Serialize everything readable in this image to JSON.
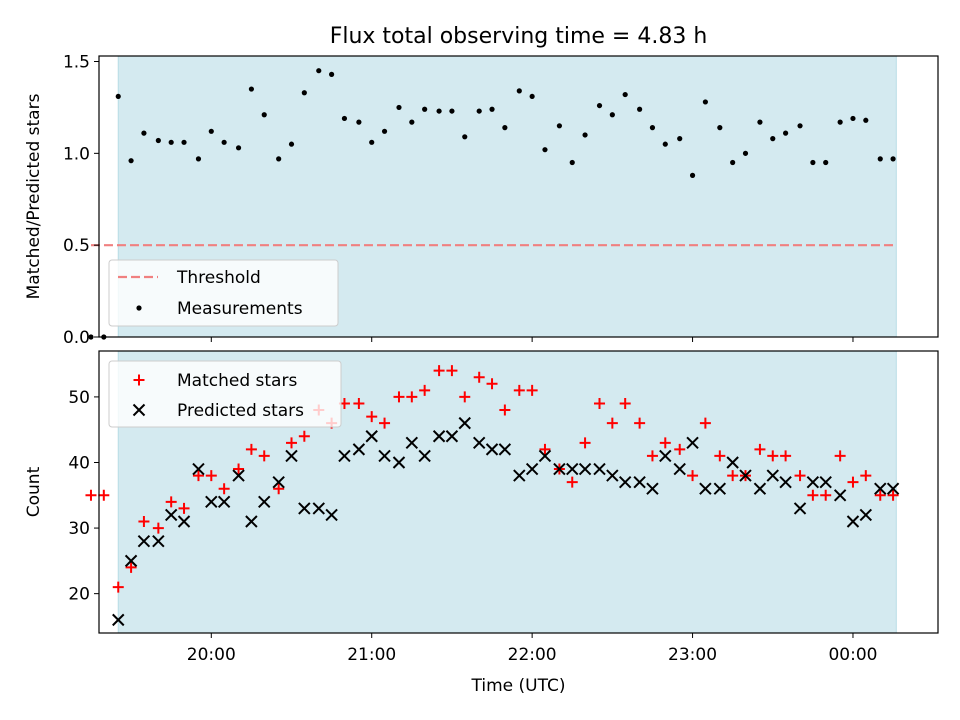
{
  "chart_data": {
    "title": "Flux total observing time = 4.83 h",
    "xlabel": "Time (UTC)",
    "x_tick_labels": [
      "20:00",
      "21:00",
      "22:00",
      "23:00",
      "00:00"
    ],
    "x_tick_hours": [
      20,
      21,
      22,
      23,
      24
    ],
    "xlim": [
      19.3,
      24.53
    ],
    "observing_window": [
      19.42,
      24.27
    ],
    "observing_window_color": "#d4eaf0",
    "top_panel": {
      "type": "scatter",
      "ylabel": "Matched/Predicted stars",
      "ylim": [
        0,
        1.53
      ],
      "y_ticks": [
        0.0,
        0.5,
        1.0,
        1.5
      ],
      "y_tick_labels": [
        "0.0",
        "0.5",
        "1.0",
        "1.5"
      ],
      "threshold": {
        "name": "Threshold",
        "value": 0.5,
        "x_range": [
          19.25,
          24.25
        ],
        "color": "#f08080"
      },
      "legend": {
        "placement": "lower-left",
        "entries": [
          "Threshold",
          "Measurements"
        ]
      },
      "series": [
        {
          "name": "Measurements",
          "color": "#000000",
          "x": [
            19.25,
            19.33,
            19.42,
            19.5,
            19.58,
            19.67,
            19.75,
            19.83,
            19.92,
            20.0,
            20.08,
            20.17,
            20.25,
            20.33,
            20.42,
            20.5,
            20.58,
            20.67,
            20.75,
            20.83,
            20.92,
            21.0,
            21.08,
            21.17,
            21.25,
            21.33,
            21.42,
            21.5,
            21.58,
            21.67,
            21.75,
            21.83,
            21.92,
            22.0,
            22.08,
            22.17,
            22.25,
            22.33,
            22.42,
            22.5,
            22.58,
            22.67,
            22.75,
            22.83,
            22.92,
            23.0,
            23.08,
            23.17,
            23.25,
            23.33,
            23.42,
            23.5,
            23.58,
            23.67,
            23.75,
            23.83,
            23.92,
            24.0,
            24.08,
            24.17,
            24.25
          ],
          "y": [
            0.0,
            0.0,
            1.31,
            0.96,
            1.11,
            1.07,
            1.06,
            1.06,
            0.97,
            1.12,
            1.06,
            1.03,
            1.35,
            1.21,
            0.97,
            1.05,
            1.33,
            1.45,
            1.43,
            1.19,
            1.17,
            1.06,
            1.12,
            1.25,
            1.17,
            1.24,
            1.23,
            1.23,
            1.09,
            1.23,
            1.24,
            1.14,
            1.34,
            1.31,
            1.02,
            1.15,
            0.95,
            1.1,
            1.26,
            1.21,
            1.32,
            1.24,
            1.14,
            1.05,
            1.08,
            0.88,
            1.28,
            1.14,
            0.95,
            1.0,
            1.17,
            1.08,
            1.11,
            1.15,
            0.95,
            0.95,
            1.17,
            1.19,
            1.18,
            0.97,
            0.97
          ]
        }
      ]
    },
    "bottom_panel": {
      "type": "scatter",
      "ylabel": "Count",
      "ylim": [
        14,
        57
      ],
      "y_ticks": [
        20,
        30,
        40,
        50
      ],
      "y_tick_labels": [
        "20",
        "30",
        "40",
        "50"
      ],
      "legend": {
        "placement": "top-left",
        "entries": [
          "Matched stars",
          "Predicted stars"
        ]
      },
      "series": [
        {
          "name": "Matched stars",
          "marker": "+",
          "color": "#ff0000",
          "x": [
            19.25,
            19.33,
            19.42,
            19.5,
            19.58,
            19.67,
            19.75,
            19.83,
            19.92,
            20.0,
            20.08,
            20.17,
            20.25,
            20.33,
            20.42,
            20.5,
            20.58,
            20.67,
            20.75,
            20.83,
            20.92,
            21.0,
            21.08,
            21.17,
            21.25,
            21.33,
            21.42,
            21.5,
            21.58,
            21.67,
            21.75,
            21.83,
            21.92,
            22.0,
            22.08,
            22.17,
            22.25,
            22.33,
            22.42,
            22.5,
            22.58,
            22.67,
            22.75,
            22.83,
            22.92,
            23.0,
            23.08,
            23.17,
            23.25,
            23.33,
            23.42,
            23.5,
            23.58,
            23.67,
            23.75,
            23.83,
            23.92,
            24.0,
            24.08,
            24.17,
            24.25
          ],
          "y": [
            35,
            35,
            21,
            24,
            31,
            30,
            34,
            33,
            38,
            38,
            36,
            39,
            42,
            41,
            36,
            43,
            44,
            48,
            46,
            49,
            49,
            47,
            46,
            50,
            50,
            51,
            54,
            54,
            50,
            53,
            52,
            48,
            51,
            51,
            42,
            39,
            37,
            43,
            49,
            46,
            49,
            46,
            41,
            43,
            42,
            38,
            46,
            41,
            38,
            38,
            42,
            41,
            41,
            38,
            35,
            35,
            41,
            37,
            38,
            35,
            35
          ]
        },
        {
          "name": "Predicted stars",
          "marker": "x",
          "color": "#000000",
          "x": [
            19.42,
            19.5,
            19.58,
            19.67,
            19.75,
            19.83,
            19.92,
            20.0,
            20.08,
            20.17,
            20.25,
            20.33,
            20.42,
            20.5,
            20.58,
            20.67,
            20.75,
            20.83,
            20.92,
            21.0,
            21.08,
            21.17,
            21.25,
            21.33,
            21.42,
            21.5,
            21.58,
            21.67,
            21.75,
            21.83,
            21.92,
            22.0,
            22.08,
            22.17,
            22.25,
            22.33,
            22.42,
            22.5,
            22.58,
            22.67,
            22.75,
            22.83,
            22.92,
            23.0,
            23.08,
            23.17,
            23.25,
            23.33,
            23.42,
            23.5,
            23.58,
            23.67,
            23.75,
            23.83,
            23.92,
            24.0,
            24.08,
            24.17,
            24.25
          ],
          "y": [
            16,
            25,
            28,
            28,
            32,
            31,
            39,
            34,
            34,
            38,
            31,
            34,
            37,
            41,
            33,
            33,
            32,
            41,
            42,
            44,
            41,
            40,
            43,
            41,
            44,
            44,
            46,
            43,
            42,
            42,
            38,
            39,
            41,
            39,
            39,
            39,
            39,
            38,
            37,
            37,
            36,
            41,
            39,
            43,
            36,
            36,
            40,
            38,
            36,
            38,
            37,
            33,
            37,
            37,
            35,
            31,
            32,
            36,
            36
          ]
        }
      ]
    }
  }
}
